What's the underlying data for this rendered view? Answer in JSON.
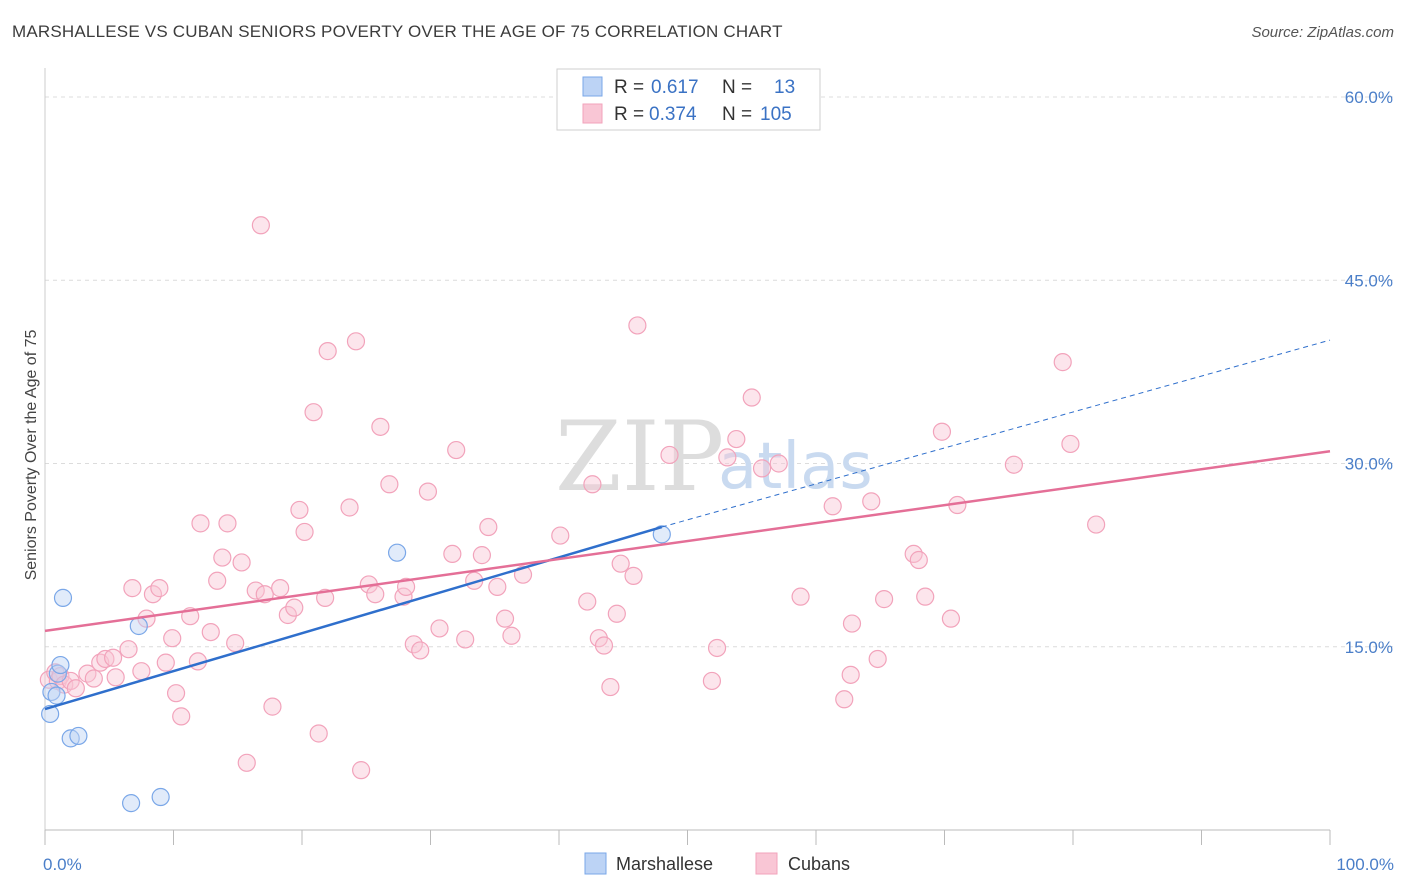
{
  "header": {
    "title": "MARSHALLESE VS CUBAN SENIORS POVERTY OVER THE AGE OF 75 CORRELATION CHART",
    "source": "Source: ZipAtlas.com"
  },
  "watermark": {
    "zip": "ZIP",
    "atlas": "atlas"
  },
  "chart_data": {
    "type": "scatter",
    "title": "MARSHALLESE VS CUBAN SENIORS POVERTY OVER THE AGE OF 75 CORRELATION CHART",
    "ylabel": "Seniors Poverty Over the Age of 75",
    "xlabel": "",
    "xlim": [
      0,
      100
    ],
    "ylim": [
      0,
      62
    ],
    "x_ticks": [
      0,
      10,
      20,
      30,
      40,
      50,
      60,
      70,
      80,
      90,
      100
    ],
    "x_tick_labels": {
      "0": "0.0%",
      "100": "100.0%"
    },
    "y_ticks": [
      15,
      30,
      45,
      60
    ],
    "y_tick_labels": [
      "15.0%",
      "30.0%",
      "45.0%",
      "60.0%"
    ],
    "grid": "horizontal-dashed",
    "legend_position": "top-center",
    "colors": {
      "marshallese": "#7aa7e8",
      "cubans": "#f2a3bb",
      "marshallese_line": "#2f6fcc",
      "cubans_line": "#e46f97"
    },
    "legend": [
      {
        "r_label": "R =",
        "r_value": "0.617",
        "n_label": "N =",
        "n_value": "13"
      },
      {
        "r_label": "R =",
        "r_value": "0.374",
        "n_label": "N =",
        "n_value": "105"
      }
    ],
    "series": [
      {
        "name": "Marshallese",
        "points": [
          [
            0.5,
            11.3
          ],
          [
            0.4,
            9.5
          ],
          [
            0.9,
            11.0
          ],
          [
            1.0,
            12.8
          ],
          [
            1.2,
            13.5
          ],
          [
            1.4,
            19.0
          ],
          [
            2.0,
            7.5
          ],
          [
            2.6,
            7.7
          ],
          [
            7.3,
            16.7
          ],
          [
            6.7,
            2.2
          ],
          [
            9.0,
            2.7
          ],
          [
            27.4,
            22.7
          ],
          [
            48.0,
            24.2
          ]
        ],
        "trend": {
          "x0": 0,
          "y0": 9.9,
          "x1": 48.0,
          "y1": 24.8,
          "dash_to_x": 100,
          "dash_to_y": 40.1
        }
      },
      {
        "name": "Cubans",
        "points": [
          [
            0.3,
            12.3
          ],
          [
            0.8,
            12.9
          ],
          [
            1.0,
            12.2
          ],
          [
            1.2,
            12.6
          ],
          [
            1.5,
            11.9
          ],
          [
            2.0,
            12.2
          ],
          [
            2.4,
            11.6
          ],
          [
            3.3,
            12.8
          ],
          [
            3.8,
            12.4
          ],
          [
            4.3,
            13.7
          ],
          [
            4.7,
            14.0
          ],
          [
            5.3,
            14.1
          ],
          [
            5.5,
            12.5
          ],
          [
            6.5,
            14.8
          ],
          [
            6.8,
            19.8
          ],
          [
            7.5,
            13.0
          ],
          [
            7.9,
            17.3
          ],
          [
            8.4,
            19.3
          ],
          [
            8.9,
            19.8
          ],
          [
            9.4,
            13.7
          ],
          [
            9.9,
            15.7
          ],
          [
            10.2,
            11.2
          ],
          [
            10.6,
            9.3
          ],
          [
            11.3,
            17.5
          ],
          [
            11.9,
            13.8
          ],
          [
            12.1,
            25.1
          ],
          [
            12.9,
            16.2
          ],
          [
            13.4,
            20.4
          ],
          [
            13.8,
            22.3
          ],
          [
            14.2,
            25.1
          ],
          [
            14.8,
            15.3
          ],
          [
            15.3,
            21.9
          ],
          [
            15.7,
            5.5
          ],
          [
            16.4,
            19.6
          ],
          [
            16.8,
            49.5
          ],
          [
            17.1,
            19.3
          ],
          [
            17.7,
            10.1
          ],
          [
            18.3,
            19.8
          ],
          [
            18.9,
            17.6
          ],
          [
            19.4,
            18.2
          ],
          [
            19.8,
            26.2
          ],
          [
            20.2,
            24.4
          ],
          [
            20.9,
            34.2
          ],
          [
            21.3,
            7.9
          ],
          [
            21.8,
            19.0
          ],
          [
            22.0,
            39.2
          ],
          [
            23.7,
            26.4
          ],
          [
            24.2,
            40.0
          ],
          [
            24.6,
            4.9
          ],
          [
            25.2,
            20.1
          ],
          [
            25.7,
            19.3
          ],
          [
            26.1,
            33.0
          ],
          [
            26.8,
            28.3
          ],
          [
            27.9,
            19.1
          ],
          [
            28.1,
            19.9
          ],
          [
            28.7,
            15.2
          ],
          [
            29.2,
            14.7
          ],
          [
            29.8,
            27.7
          ],
          [
            30.7,
            16.5
          ],
          [
            31.7,
            22.6
          ],
          [
            32.0,
            31.1
          ],
          [
            32.7,
            15.6
          ],
          [
            33.4,
            20.4
          ],
          [
            34.0,
            22.5
          ],
          [
            34.5,
            24.8
          ],
          [
            35.2,
            19.9
          ],
          [
            35.8,
            17.3
          ],
          [
            36.3,
            15.9
          ],
          [
            37.2,
            20.9
          ],
          [
            40.1,
            24.1
          ],
          [
            42.2,
            18.7
          ],
          [
            42.6,
            28.3
          ],
          [
            43.1,
            15.7
          ],
          [
            43.5,
            15.1
          ],
          [
            44.0,
            11.7
          ],
          [
            44.5,
            17.7
          ],
          [
            44.8,
            21.8
          ],
          [
            45.8,
            20.8
          ],
          [
            46.1,
            41.3
          ],
          [
            48.6,
            30.7
          ],
          [
            51.9,
            12.2
          ],
          [
            52.3,
            14.9
          ],
          [
            53.1,
            30.5
          ],
          [
            53.8,
            32.0
          ],
          [
            55.0,
            35.4
          ],
          [
            55.8,
            29.6
          ],
          [
            57.1,
            30.0
          ],
          [
            58.8,
            19.1
          ],
          [
            61.3,
            26.5
          ],
          [
            62.2,
            10.7
          ],
          [
            62.7,
            12.7
          ],
          [
            62.8,
            16.9
          ],
          [
            64.3,
            26.9
          ],
          [
            64.8,
            14.0
          ],
          [
            65.3,
            18.9
          ],
          [
            67.6,
            22.6
          ],
          [
            68.0,
            22.1
          ],
          [
            68.5,
            19.1
          ],
          [
            69.8,
            32.6
          ],
          [
            70.5,
            17.3
          ],
          [
            71.0,
            26.6
          ],
          [
            75.4,
            29.9
          ],
          [
            79.2,
            38.3
          ],
          [
            79.8,
            31.6
          ],
          [
            81.8,
            25.0
          ]
        ],
        "trend": {
          "x0": 0,
          "y0": 16.3,
          "x1": 100,
          "y1": 31.0
        }
      }
    ]
  }
}
